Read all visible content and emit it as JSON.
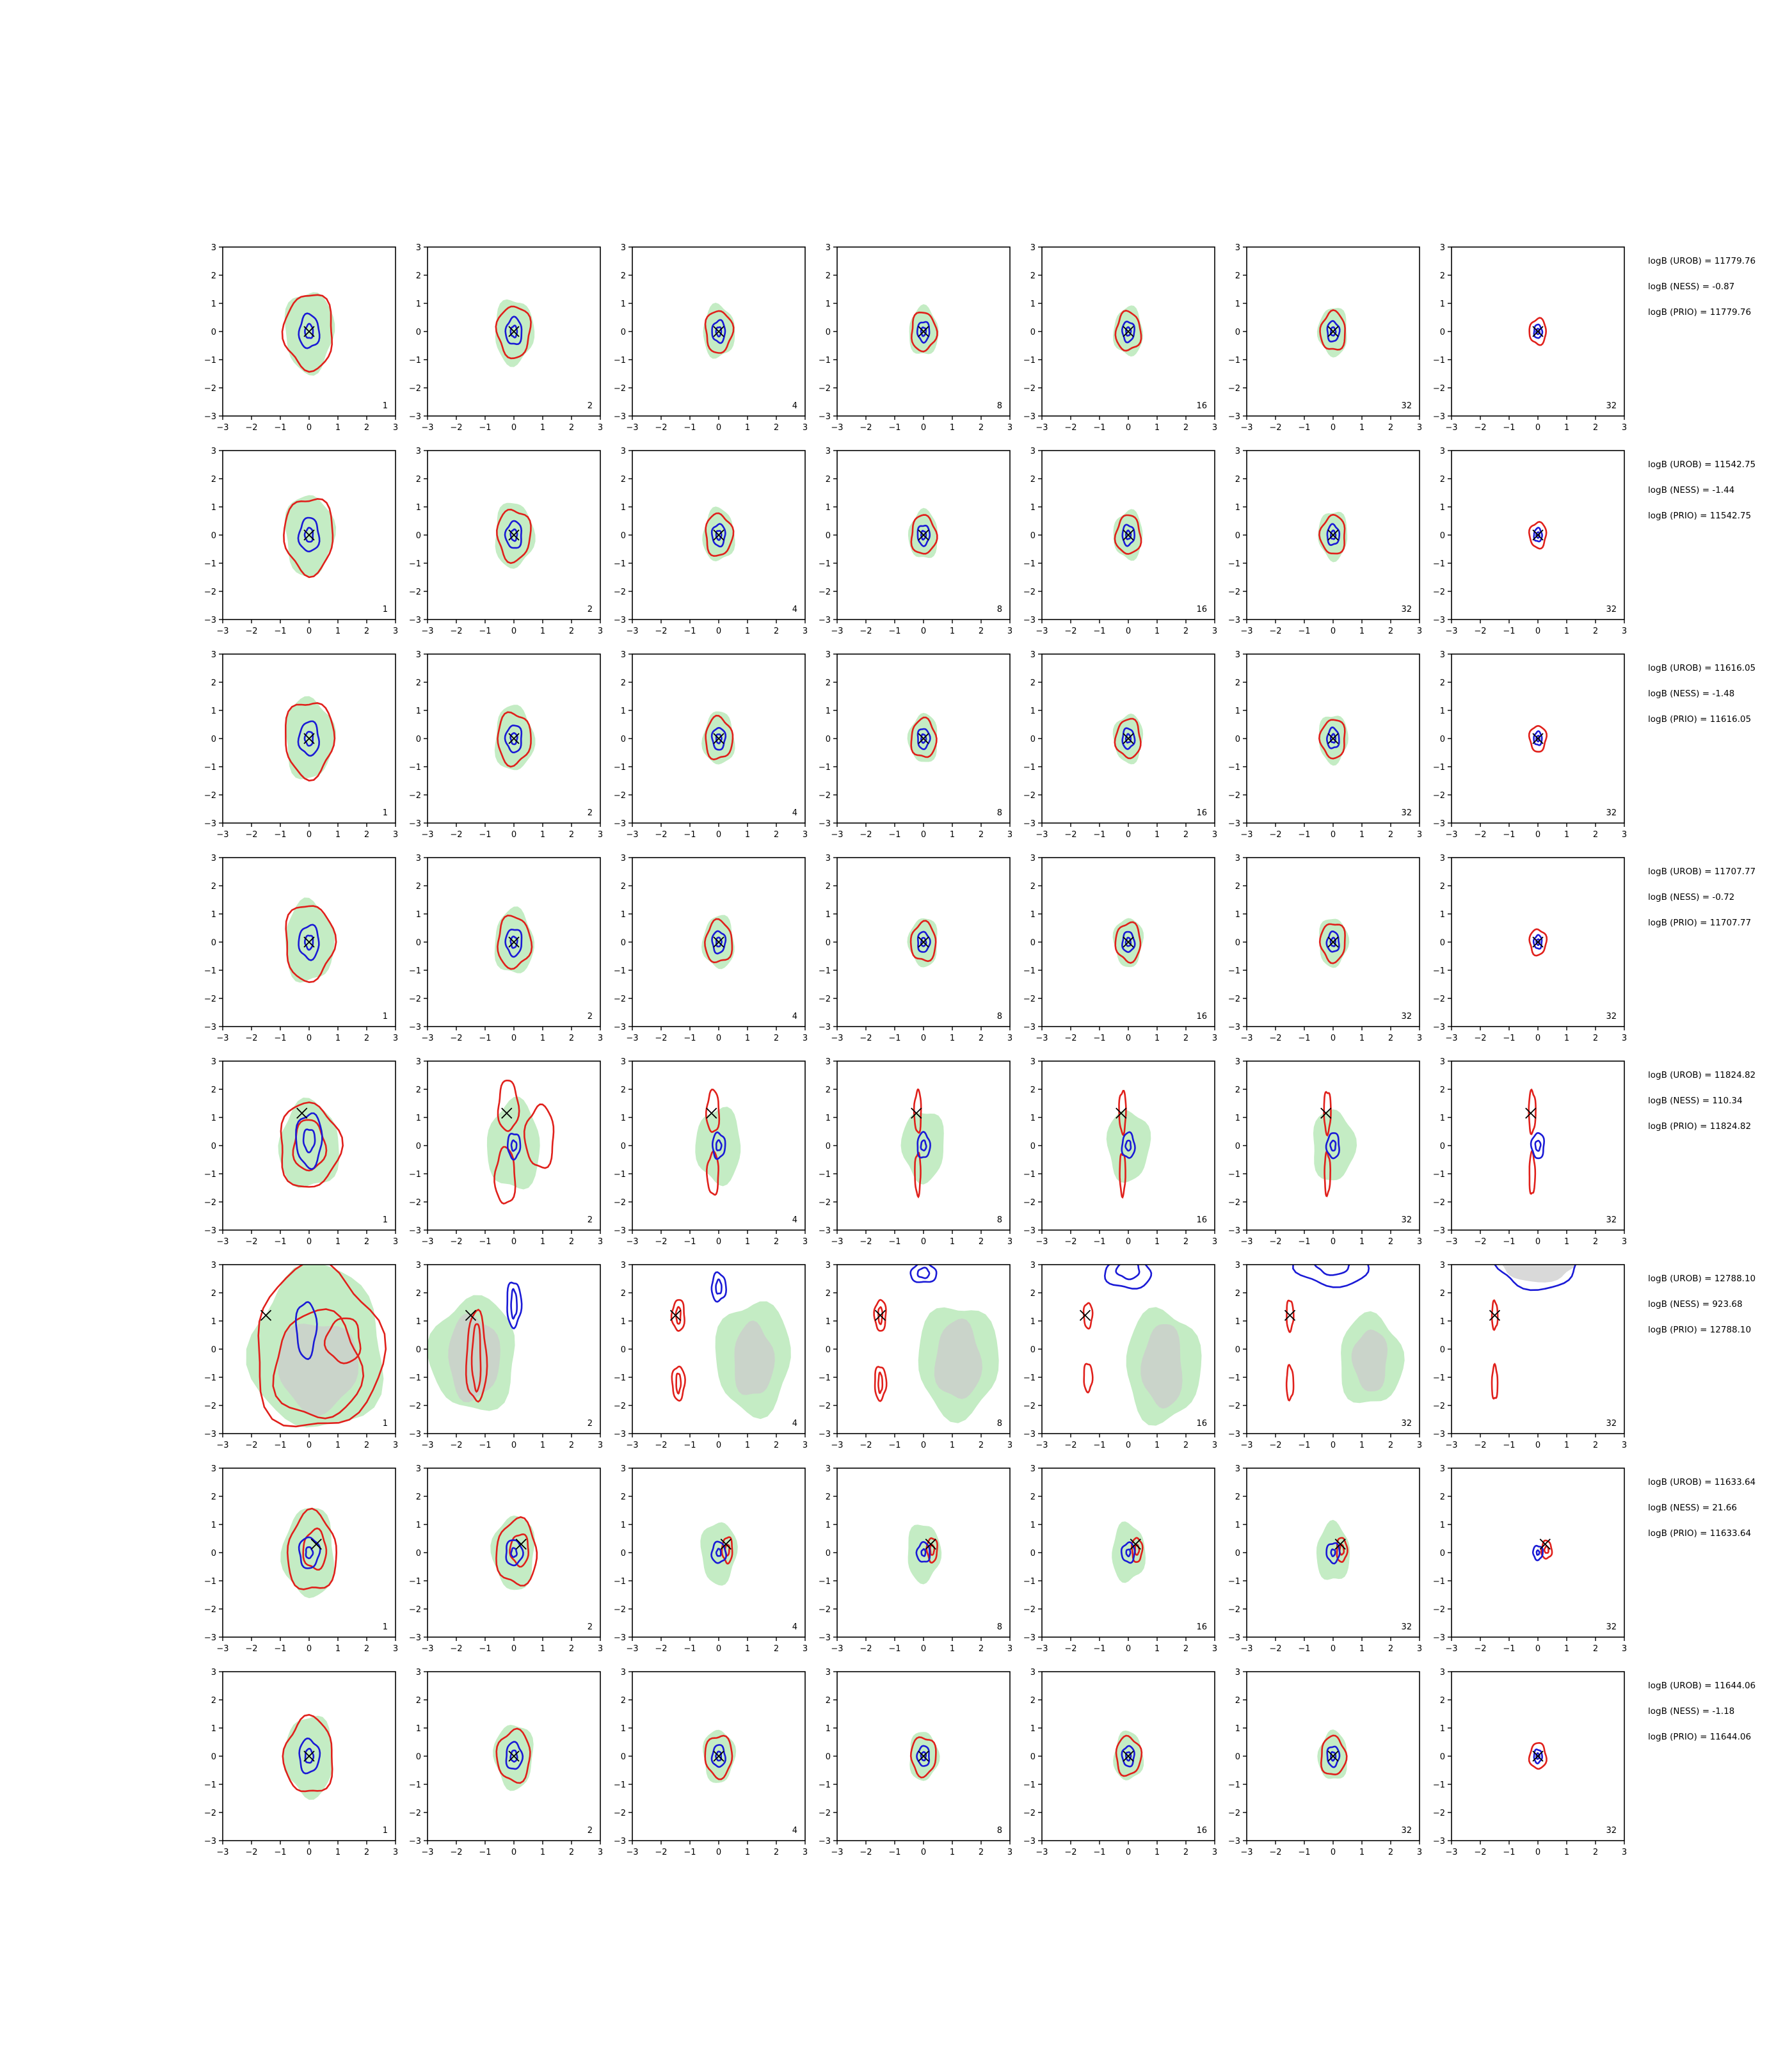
{
  "chart_data": {
    "type": "contour-grid",
    "rows": 8,
    "cols": 7,
    "xlim": [
      -3,
      3
    ],
    "ylim": [
      -3,
      3
    ],
    "xticks": [
      -3,
      -2,
      -1,
      0,
      1,
      2,
      3
    ],
    "yticks": [
      -3,
      -2,
      -1,
      0,
      1,
      2,
      3
    ],
    "col_labels": [
      "1",
      "2",
      "4",
      "8",
      "16",
      "32",
      "32"
    ],
    "series_colors": {
      "density": "#c4ecc4",
      "red_contour": "#e0201b",
      "blue_contour": "#1a1ad6",
      "inner_region": "#cccccc",
      "marker": "#000000"
    },
    "rows_data": [
      {
        "marker": [
          0,
          0
        ],
        "annotations": [
          "logB (UROB) = 11779.76",
          "logB (NESS) = -0.87",
          "logB (PRIO) = 11779.76"
        ]
      },
      {
        "marker": [
          0,
          0
        ],
        "annotations": [
          "logB (UROB) = 11542.75",
          "logB (NESS) = -1.44",
          "logB (PRIO) = 11542.75"
        ]
      },
      {
        "marker": [
          0,
          0
        ],
        "annotations": [
          "logB (UROB) = 11616.05",
          "logB (NESS) = -1.48",
          "logB (PRIO) = 11616.05"
        ]
      },
      {
        "marker": [
          0,
          0
        ],
        "annotations": [
          "logB (UROB) = 11707.77",
          "logB (NESS) = -0.72",
          "logB (PRIO) = 11707.77"
        ]
      },
      {
        "marker": [
          -0.25,
          1.15
        ],
        "annotations": [
          "logB (UROB) = 11824.82",
          "logB (NESS) = 110.34",
          "logB (PRIO) = 11824.82"
        ]
      },
      {
        "marker": [
          -1.5,
          1.2
        ],
        "annotations": [
          "logB (UROB) = 12788.10",
          "logB (NESS) = 923.68",
          "logB (PRIO) = 12788.10"
        ]
      },
      {
        "marker": [
          0.25,
          0.3
        ],
        "annotations": [
          "logB (UROB) = 11633.64",
          "logB (NESS) = 21.66",
          "logB (PRIO) = 11633.64"
        ]
      },
      {
        "marker": [
          0,
          0
        ],
        "annotations": [
          "logB (UROB) = 11644.06",
          "logB (NESS) = -1.18",
          "logB (PRIO) = 11644.06"
        ]
      }
    ]
  }
}
